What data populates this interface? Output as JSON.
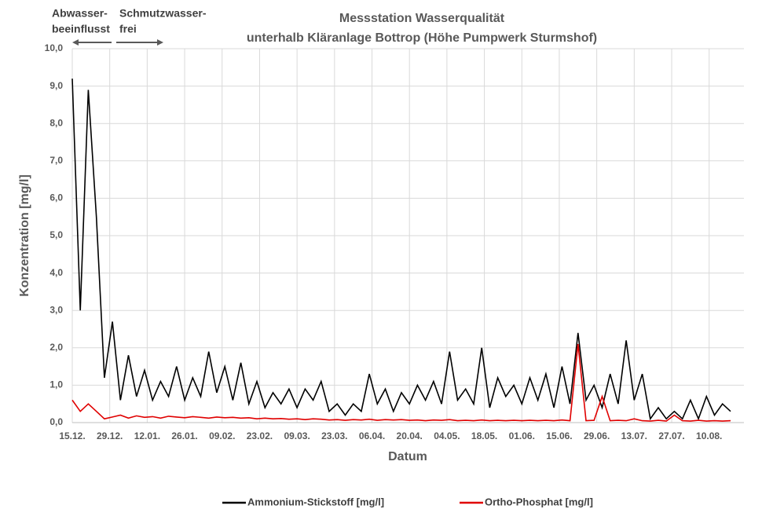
{
  "chart_data": {
    "type": "line",
    "title": "Messstation Wasserqualität",
    "subtitle": "unterhalb Kläranlage Bottrop (Höhe Pumpwerk Sturmshof)",
    "annotations": [
      "Abwasser-",
      "beeinflusst",
      "Schmutzwasser-",
      "frei"
    ],
    "x_label": "Datum",
    "y_label": "Konzentration [mg/l]",
    "grid": true,
    "xlim": [
      0,
      251
    ],
    "ylim": [
      0,
      10
    ],
    "xticks": [
      {
        "value": 0,
        "label": "15.12."
      },
      {
        "value": 14,
        "label": "29.12."
      },
      {
        "value": 28,
        "label": "12.01."
      },
      {
        "value": 42,
        "label": "26.01."
      },
      {
        "value": 56,
        "label": "09.02."
      },
      {
        "value": 70,
        "label": "23.02."
      },
      {
        "value": 84,
        "label": "09.03."
      },
      {
        "value": 98,
        "label": "23.03."
      },
      {
        "value": 112,
        "label": "06.04."
      },
      {
        "value": 126,
        "label": "20.04."
      },
      {
        "value": 140,
        "label": "04.05."
      },
      {
        "value": 154,
        "label": "18.05."
      },
      {
        "value": 168,
        "label": "01.06."
      },
      {
        "value": 182,
        "label": "15.06."
      },
      {
        "value": 196,
        "label": "29.06."
      },
      {
        "value": 210,
        "label": "13.07."
      },
      {
        "value": 224,
        "label": "27.07."
      },
      {
        "value": 238,
        "label": "10.08."
      }
    ],
    "yticks": [
      {
        "value": 0,
        "label": "0,0"
      },
      {
        "value": 1,
        "label": "1,0"
      },
      {
        "value": 2,
        "label": "2,0"
      },
      {
        "value": 3,
        "label": "3,0"
      },
      {
        "value": 4,
        "label": "4,0"
      },
      {
        "value": 5,
        "label": "5,0"
      },
      {
        "value": 6,
        "label": "6,0"
      },
      {
        "value": 7,
        "label": "7,0"
      },
      {
        "value": 8,
        "label": "8,0"
      },
      {
        "value": 9,
        "label": "9,0"
      },
      {
        "value": 10,
        "label": "10,0"
      }
    ],
    "x": [
      0,
      3,
      6,
      9,
      12,
      15,
      18,
      21,
      24,
      27,
      30,
      33,
      36,
      39,
      42,
      45,
      48,
      51,
      54,
      57,
      60,
      63,
      66,
      69,
      72,
      75,
      78,
      81,
      84,
      87,
      90,
      93,
      96,
      99,
      102,
      105,
      108,
      111,
      114,
      117,
      120,
      123,
      126,
      129,
      132,
      135,
      138,
      141,
      144,
      147,
      150,
      153,
      156,
      159,
      162,
      165,
      168,
      171,
      174,
      177,
      180,
      183,
      186,
      189,
      192,
      195,
      198,
      201,
      204,
      207,
      210,
      213,
      216,
      219,
      222,
      225,
      228,
      231,
      234,
      237,
      240,
      243,
      246
    ],
    "series": [
      {
        "name": "Ammonium-Stickstoff  [mg/l]",
        "color": "#000000",
        "values": [
          9.2,
          3.0,
          8.9,
          5.5,
          1.2,
          2.7,
          0.6,
          1.8,
          0.7,
          1.4,
          0.6,
          1.1,
          0.7,
          1.5,
          0.6,
          1.2,
          0.7,
          1.9,
          0.8,
          1.5,
          0.6,
          1.6,
          0.5,
          1.1,
          0.4,
          0.8,
          0.5,
          0.9,
          0.4,
          0.9,
          0.6,
          1.1,
          0.3,
          0.5,
          0.2,
          0.5,
          0.3,
          1.3,
          0.5,
          0.9,
          0.3,
          0.8,
          0.5,
          1.0,
          0.6,
          1.1,
          0.5,
          1.9,
          0.6,
          0.9,
          0.5,
          2.0,
          0.4,
          1.2,
          0.7,
          1.0,
          0.5,
          1.2,
          0.6,
          1.3,
          0.4,
          1.5,
          0.5,
          2.4,
          0.6,
          1.0,
          0.4,
          1.3,
          0.5,
          2.2,
          0.6,
          1.3,
          0.1,
          0.4,
          0.1,
          0.3,
          0.1,
          0.6,
          0.1,
          0.7,
          0.2,
          0.5,
          0.3
        ]
      },
      {
        "name": "Ortho-Phosphat [mg/l]",
        "color": "#e00000",
        "values": [
          0.6,
          0.3,
          0.5,
          0.3,
          0.1,
          0.15,
          0.2,
          0.12,
          0.18,
          0.14,
          0.16,
          0.12,
          0.17,
          0.15,
          0.13,
          0.16,
          0.14,
          0.12,
          0.15,
          0.13,
          0.14,
          0.12,
          0.13,
          0.1,
          0.12,
          0.1,
          0.11,
          0.09,
          0.1,
          0.08,
          0.1,
          0.09,
          0.07,
          0.08,
          0.06,
          0.08,
          0.07,
          0.09,
          0.06,
          0.08,
          0.07,
          0.08,
          0.06,
          0.07,
          0.05,
          0.07,
          0.06,
          0.08,
          0.05,
          0.06,
          0.05,
          0.07,
          0.05,
          0.06,
          0.05,
          0.06,
          0.05,
          0.06,
          0.05,
          0.06,
          0.05,
          0.07,
          0.05,
          2.1,
          0.05,
          0.06,
          0.7,
          0.05,
          0.06,
          0.05,
          0.1,
          0.05,
          0.04,
          0.06,
          0.04,
          0.2,
          0.05,
          0.04,
          0.06,
          0.04,
          0.05,
          0.04,
          0.05
        ]
      }
    ],
    "legend": "bottom"
  }
}
